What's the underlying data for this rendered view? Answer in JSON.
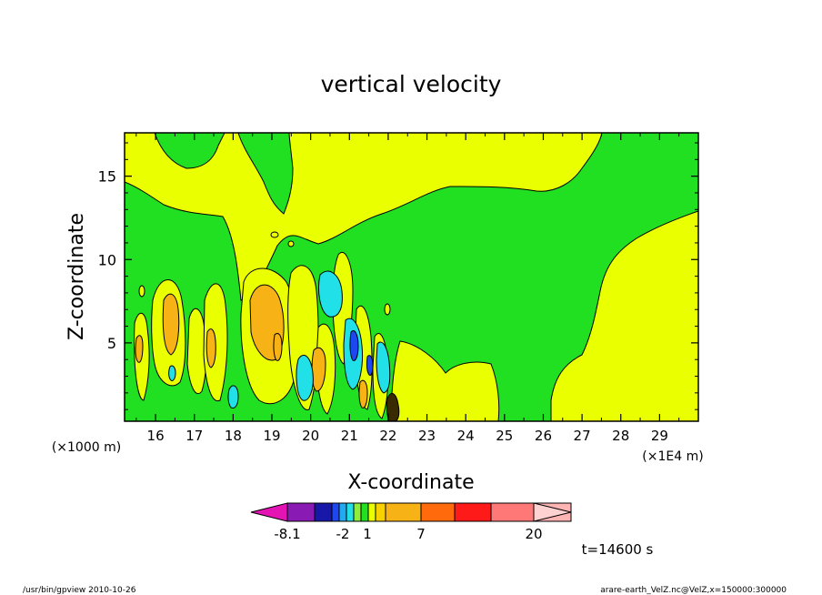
{
  "chart_data": {
    "type": "heatmap",
    "title": "vertical velocity",
    "xlabel": "X-coordinate",
    "ylabel": "Z-coordinate",
    "x_unit_left": "(×1000 m)",
    "x_unit_right": "(×1E4 m)",
    "xlim": [
      15.2,
      30.0
    ],
    "ylim": [
      0.3,
      17.6
    ],
    "x_ticks": [
      "16",
      "17",
      "18",
      "19",
      "20",
      "21",
      "22",
      "23",
      "24",
      "25",
      "26",
      "27",
      "28",
      "29"
    ],
    "x_tick_values": [
      16,
      17,
      18,
      19,
      20,
      21,
      22,
      23,
      24,
      25,
      26,
      27,
      28,
      29
    ],
    "y_ticks": [
      "5",
      "10",
      "15"
    ],
    "y_tick_values": [
      5,
      10,
      15
    ],
    "time_label": "t=14600 s",
    "colorbar": {
      "labels": [
        "-8.1",
        "-2",
        "1",
        "7",
        "20"
      ],
      "colors": [
        "#e414b4",
        "#8a1ab4",
        "#1818a8",
        "#1f47f0",
        "#22aaf0",
        "#22e0e8",
        "#8fec3a",
        "#21e021",
        "#eaff00",
        "#f7d200",
        "#f7b216",
        "#ff6a0c",
        "#ff1a1a",
        "#ff7878",
        "#ffb4b4",
        "#ffd2d2"
      ]
    },
    "regions": [
      {
        "level": "green",
        "color": "#21e021",
        "description": "background near-zero band"
      },
      {
        "level": "yellow",
        "color": "#eaff00",
        "description": "weak positive upper and right areas"
      },
      {
        "level": "orange",
        "color": "#f7b216",
        "description": "moderate updrafts near x=16-20"
      },
      {
        "level": "cyan",
        "color": "#22e0e8",
        "description": "downdrafts near x=20-22"
      }
    ]
  },
  "footer": {
    "left": "/usr/bin/gpview   2010-10-26",
    "right": "arare-earth_VelZ.nc@VelZ,x=150000:300000"
  },
  "colors": {
    "green": "#21e021",
    "yellow": "#eaff00",
    "orange": "#f7b216",
    "cyan": "#22e0e8",
    "blue": "#1f47f0",
    "dark": "#3a2a00"
  }
}
